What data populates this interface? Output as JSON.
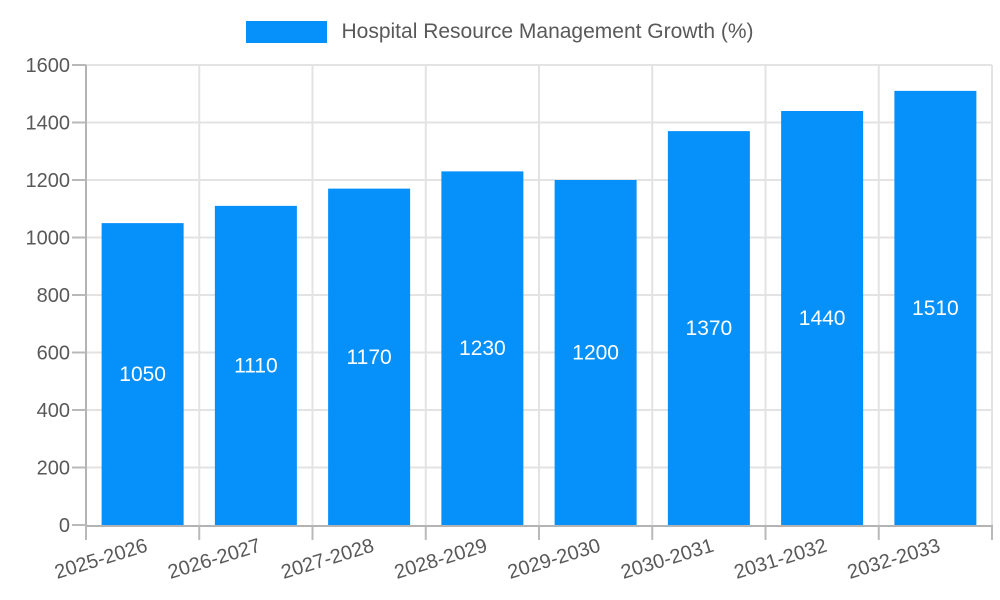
{
  "chart_data": {
    "type": "bar",
    "title": "Hospital Resource Management Growth (%)",
    "series_name": "Hospital Resource Management Growth (%)",
    "categories": [
      "2025-2026",
      "2026-2027",
      "2027-2028",
      "2028-2029",
      "2029-2030",
      "2030-2031",
      "2031-2032",
      "2032-2033"
    ],
    "values": [
      1050,
      1110,
      1170,
      1230,
      1200,
      1370,
      1440,
      1510
    ],
    "value_labels": [
      "1050",
      "1110",
      "1170",
      "1230",
      "1200",
      "1370",
      "1440",
      "1510"
    ],
    "xlabel": "",
    "ylabel": "",
    "ylim": [
      0,
      1600
    ],
    "yticks": [
      0,
      200,
      400,
      600,
      800,
      1000,
      1200,
      1400,
      1600
    ],
    "ytick_labels": [
      "0",
      "200",
      "400",
      "600",
      "800",
      "1000",
      "1200",
      "1400",
      "1600"
    ],
    "grid": true,
    "legend_position": "top",
    "value_label_position": "middle",
    "x_label_rotation_deg": -17,
    "colors": {
      "bar": "#0690fa",
      "grid_line": "#e3e3e3",
      "axis_line": "#b3b3b3",
      "tick_mark": "#b9b9b9",
      "tick_label": "#595959",
      "value_label": "#ffffff",
      "legend_text": "#595959",
      "background": "#ffffff"
    }
  }
}
